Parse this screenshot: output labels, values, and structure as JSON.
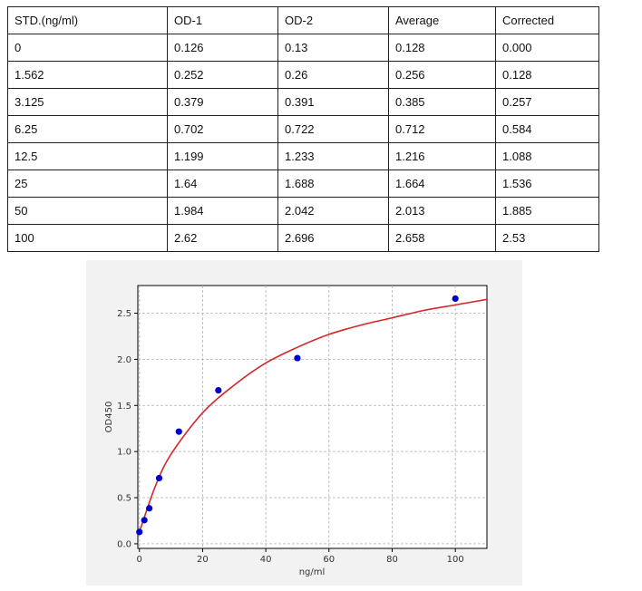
{
  "table": {
    "headers": [
      "STD.(ng/ml)",
      "OD-1",
      "OD-2",
      "Average",
      "Corrected"
    ],
    "rows": [
      [
        "0",
        "0.126",
        "0.13",
        "0.128",
        "0.000"
      ],
      [
        "1.562",
        "0.252",
        "0.26",
        "0.256",
        "0.128"
      ],
      [
        "3.125",
        "0.379",
        "0.391",
        "0.385",
        "0.257"
      ],
      [
        "6.25",
        "0.702",
        "0.722",
        "0.712",
        "0.584"
      ],
      [
        "12.5",
        "1.199",
        "1.233",
        "1.216",
        "1.088"
      ],
      [
        "25",
        "1.64",
        "1.688",
        "1.664",
        "1.536"
      ],
      [
        "50",
        "1.984",
        "2.042",
        "2.013",
        "1.885"
      ],
      [
        "100",
        "2.62",
        "2.696",
        "2.658",
        "2.53"
      ]
    ]
  },
  "chart_data": {
    "type": "scatter",
    "title": "",
    "xlabel": "ng/ml",
    "ylabel": "OD450",
    "xlim": [
      -0.5,
      110
    ],
    "ylim": [
      -0.05,
      2.8
    ],
    "xticks": [
      0,
      20,
      40,
      60,
      80,
      100
    ],
    "yticks": [
      0.0,
      0.5,
      1.0,
      1.5,
      2.0,
      2.5
    ],
    "ytick_labels": [
      "0.0",
      "0.5",
      "1.0",
      "1.5",
      "2.0",
      "2.5"
    ],
    "grid": true,
    "series": [
      {
        "kind": "points",
        "color": "#0000cc",
        "x": [
          0,
          1.562,
          3.125,
          6.25,
          12.5,
          25,
          50,
          100
        ],
        "y": [
          0.128,
          0.256,
          0.385,
          0.712,
          1.216,
          1.664,
          2.013,
          2.658
        ]
      },
      {
        "kind": "fitted-curve",
        "color": "#d62728",
        "x": [
          0,
          5,
          10,
          20,
          30,
          40,
          50,
          60,
          70,
          80,
          90,
          100,
          110
        ],
        "y": [
          0.128,
          0.62,
          0.97,
          1.42,
          1.72,
          1.96,
          2.13,
          2.27,
          2.37,
          2.45,
          2.53,
          2.59,
          2.65
        ]
      }
    ]
  }
}
